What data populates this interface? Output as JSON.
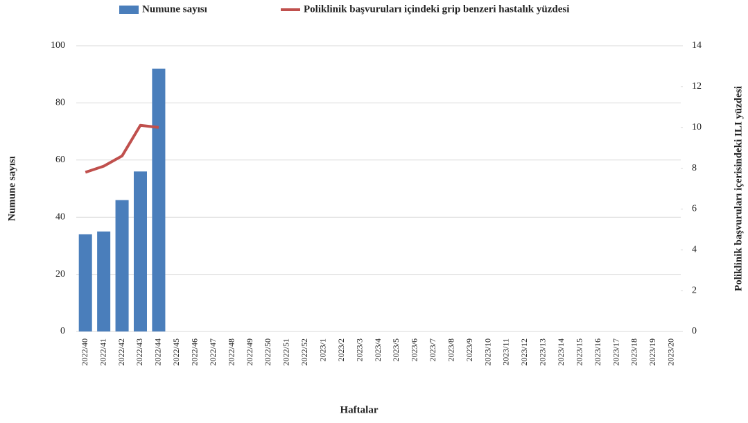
{
  "chart_data": {
    "type": "bar-line",
    "categories": [
      "2022/40",
      "2022/41",
      "2022/42",
      "2022/43",
      "2022/44",
      "2022/45",
      "2022/46",
      "2022/47",
      "2022/48",
      "2022/49",
      "2022/50",
      "2022/51",
      "2022/52",
      "2023/1",
      "2023/2",
      "2023/3",
      "2023/4",
      "2023/5",
      "2023/6",
      "2023/7",
      "2023/8",
      "2023/9",
      "2023/10",
      "2023/11",
      "2023/12",
      "2023/13",
      "2023/14",
      "2023/15",
      "2023/16",
      "2023/17",
      "2023/18",
      "2023/19",
      "2023/20"
    ],
    "series": [
      {
        "name": "Numune sayısı",
        "type": "bar",
        "color": "#4a7ebb",
        "values": [
          34,
          35,
          46,
          56,
          92,
          null,
          null,
          null,
          null,
          null,
          null,
          null,
          null,
          null,
          null,
          null,
          null,
          null,
          null,
          null,
          null,
          null,
          null,
          null,
          null,
          null,
          null,
          null,
          null,
          null,
          null,
          null,
          null
        ]
      },
      {
        "name": "Poliklinik başvuruları içindeki grip benzeri hastalık yüzdesi",
        "type": "line",
        "axis": "y2",
        "color": "#c0504d",
        "values": [
          7.8,
          8.1,
          8.6,
          10.1,
          10.0,
          null,
          null,
          null,
          null,
          null,
          null,
          null,
          null,
          null,
          null,
          null,
          null,
          null,
          null,
          null,
          null,
          null,
          null,
          null,
          null,
          null,
          null,
          null,
          null,
          null,
          null,
          null,
          null
        ]
      }
    ],
    "ylim": [
      0,
      100
    ],
    "yticks": [
      0,
      20,
      40,
      60,
      80,
      100
    ],
    "y2lim": [
      0,
      14
    ],
    "y2ticks": [
      0,
      2,
      4,
      6,
      8,
      10,
      12,
      14
    ],
    "ylabel": "Numune sayısı",
    "y2label": "Poliklinik başvuruları içerisindeki ILI yüzdesi",
    "xlabel": "Haftalar",
    "grid": true
  }
}
